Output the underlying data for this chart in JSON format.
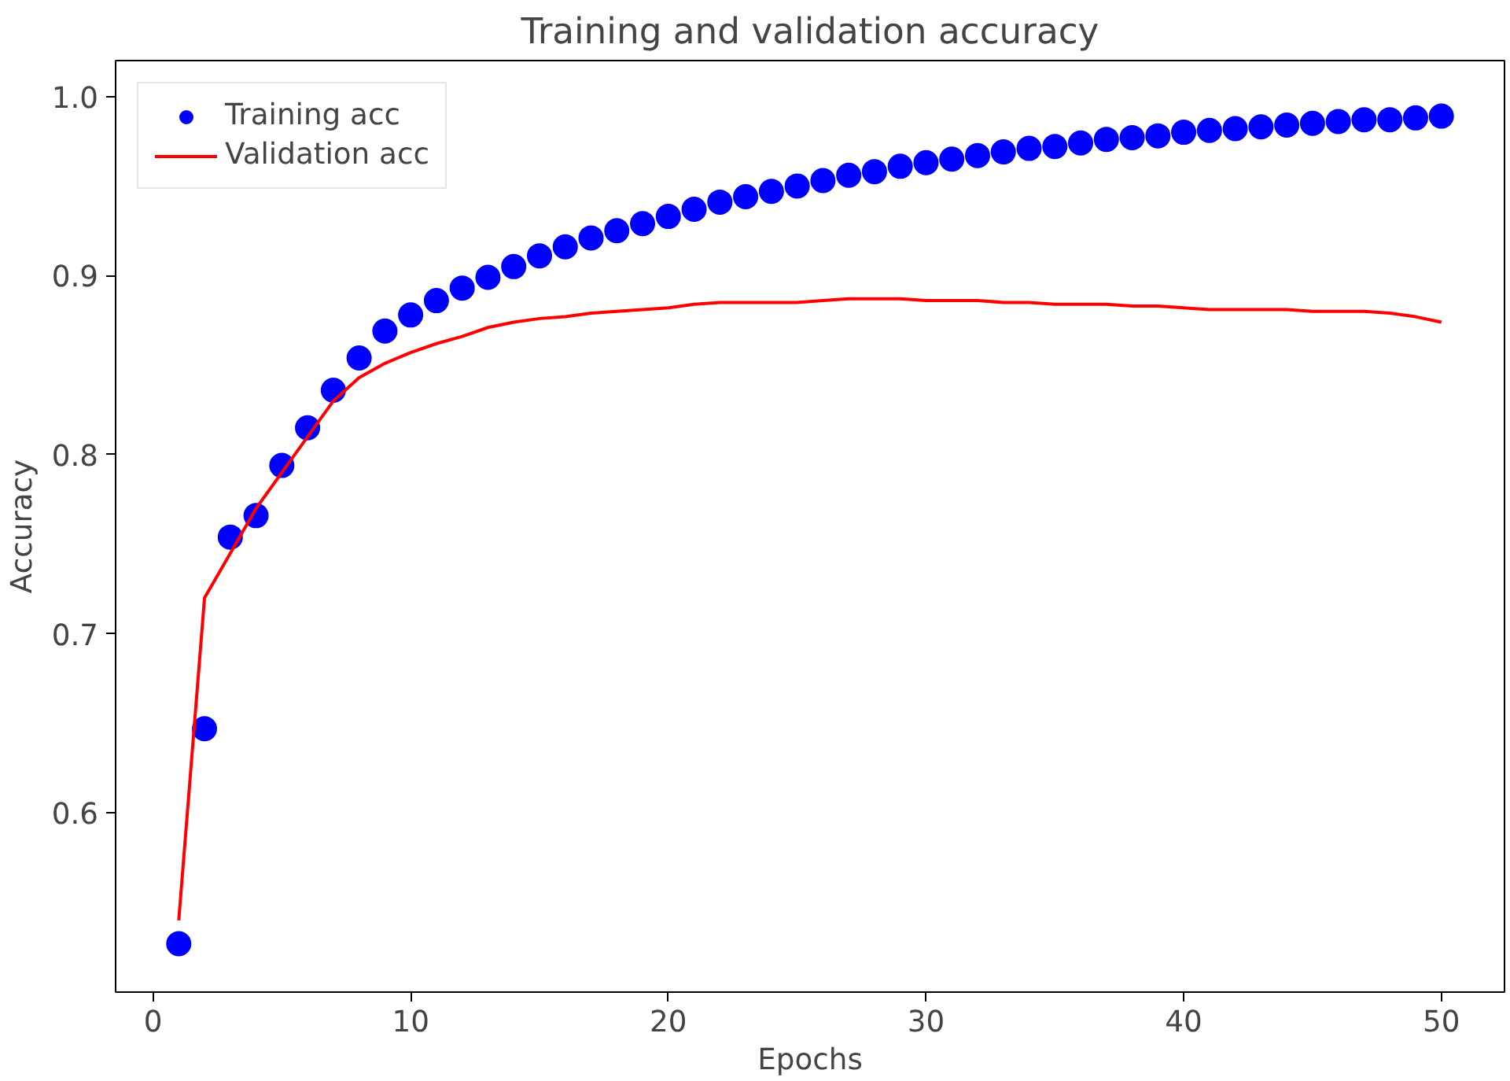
{
  "chart_data": {
    "type": "line",
    "title": "Training and validation accuracy",
    "xlabel": "Epochs",
    "ylabel": "Accuracy",
    "x": [
      1,
      2,
      3,
      4,
      5,
      6,
      7,
      8,
      9,
      10,
      11,
      12,
      13,
      14,
      15,
      16,
      17,
      18,
      19,
      20,
      21,
      22,
      23,
      24,
      25,
      26,
      27,
      28,
      29,
      30,
      31,
      32,
      33,
      34,
      35,
      36,
      37,
      38,
      39,
      40,
      41,
      42,
      43,
      44,
      45,
      46,
      47,
      48,
      49,
      50
    ],
    "series": [
      {
        "name": "Training acc",
        "type": "scatter",
        "marker": "circle",
        "color": "#0000ff",
        "values": [
          0.527,
          0.647,
          0.754,
          0.766,
          0.794,
          0.815,
          0.836,
          0.854,
          0.869,
          0.878,
          0.886,
          0.893,
          0.899,
          0.905,
          0.911,
          0.916,
          0.921,
          0.925,
          0.929,
          0.933,
          0.937,
          0.941,
          0.944,
          0.947,
          0.95,
          0.953,
          0.956,
          0.958,
          0.961,
          0.963,
          0.965,
          0.967,
          0.969,
          0.971,
          0.972,
          0.974,
          0.976,
          0.977,
          0.978,
          0.98,
          0.981,
          0.982,
          0.983,
          0.984,
          0.985,
          0.986,
          0.987,
          0.987,
          0.988,
          0.989
        ]
      },
      {
        "name": "Validation acc",
        "line_style": "solid",
        "color": "#ff0000",
        "values": [
          0.54,
          0.72,
          0.745,
          0.77,
          0.79,
          0.81,
          0.83,
          0.843,
          0.851,
          0.857,
          0.862,
          0.866,
          0.871,
          0.874,
          0.876,
          0.877,
          0.879,
          0.88,
          0.881,
          0.882,
          0.884,
          0.885,
          0.885,
          0.885,
          0.885,
          0.886,
          0.887,
          0.887,
          0.887,
          0.886,
          0.886,
          0.886,
          0.885,
          0.885,
          0.884,
          0.884,
          0.884,
          0.883,
          0.883,
          0.882,
          0.881,
          0.881,
          0.881,
          0.881,
          0.88,
          0.88,
          0.88,
          0.879,
          0.877,
          0.874
        ]
      }
    ],
    "xlim": [
      -1.45,
      52.45
    ],
    "ylim": [
      0.5,
      1.02
    ],
    "xticks": [
      0,
      10,
      20,
      30,
      40,
      50
    ],
    "yticks": [
      {
        "value": 0.6,
        "label": "0.6"
      },
      {
        "value": 0.7,
        "label": "0.7"
      },
      {
        "value": 0.8,
        "label": "0.8"
      },
      {
        "value": 0.9,
        "label": "0.9"
      },
      {
        "value": 1.0,
        "label": "1.0"
      }
    ],
    "grid": false,
    "legend": "top left"
  }
}
